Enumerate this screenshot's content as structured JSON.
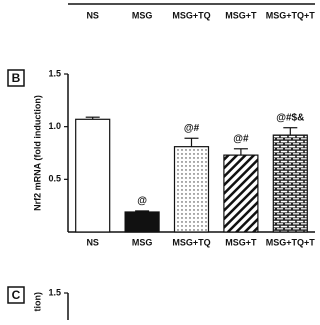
{
  "chart_data": [
    {
      "type": "axis",
      "categories": [
        "NS",
        "MSG",
        "MSG+TQ",
        "MSG+T",
        "MSG+TQ+T"
      ]
    },
    {
      "type": "bar",
      "panel": "B",
      "ylabel": "Nrf2 mRNA (fold induction)",
      "categories": [
        "NS",
        "MSG",
        "MSG+TQ",
        "MSG+T",
        "MSG+TQ+T"
      ],
      "values": [
        1.07,
        0.19,
        0.81,
        0.73,
        0.92
      ],
      "errors": [
        0.02,
        0.01,
        0.08,
        0.06,
        0.07
      ],
      "annotations": [
        null,
        "@",
        "@#",
        "@#",
        "@#$&"
      ],
      "fills": [
        "white",
        "black",
        "dots",
        "hatch",
        "brick"
      ],
      "ylim": [
        0,
        1.5
      ],
      "yticks": [
        0.5,
        {
          "value": 1.0,
          "label": "1.0"
        },
        1.5
      ]
    },
    {
      "type": "axis",
      "panel": "C",
      "ylabel": "tion)",
      "yticks": [
        1.5
      ],
      "ylim": [
        0,
        1.5
      ]
    }
  ]
}
